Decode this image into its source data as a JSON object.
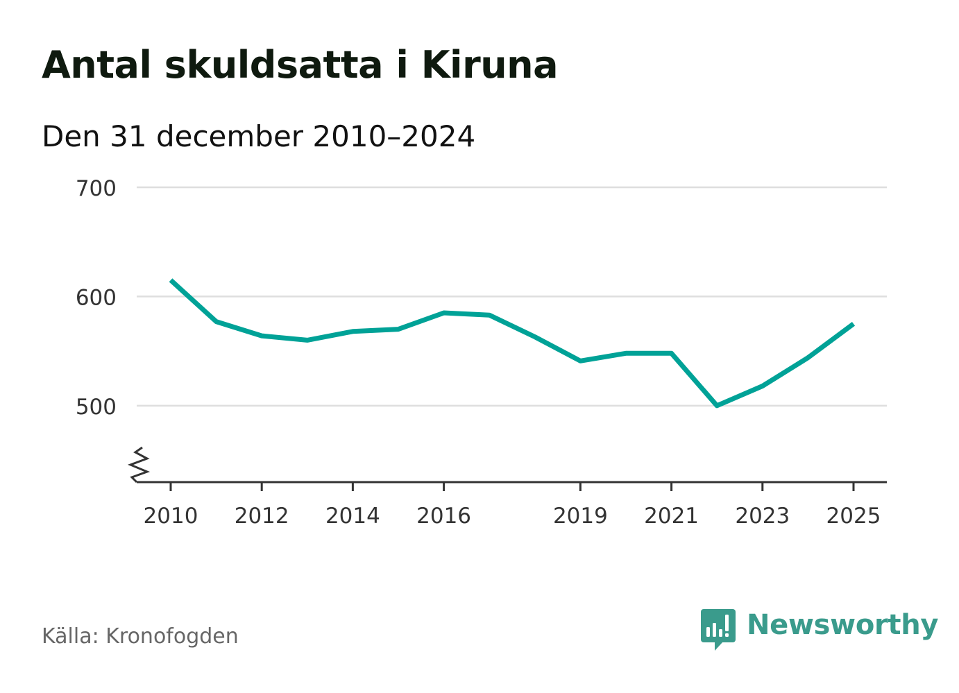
{
  "header": {
    "title": "Antal skuldsatta i Kiruna",
    "subtitle": "Den 31 december 2010–2024"
  },
  "footer": {
    "source": "Källa: Kronofogden",
    "brand": "Newsworthy",
    "brand_icon": "newsworthy-logo-icon"
  },
  "colors": {
    "line": "#00a297",
    "grid": "#dedede",
    "axis": "#333333",
    "tick_text": "#333333",
    "brand": "#3a9b8c"
  },
  "chart_data": {
    "type": "line",
    "title": "Antal skuldsatta i Kiruna",
    "subtitle": "Den 31 december 2010–2024",
    "xlabel": "",
    "ylabel": "",
    "x": [
      2010,
      2011,
      2012,
      2013,
      2014,
      2015,
      2016,
      2017,
      2018,
      2019,
      2020,
      2021,
      2022,
      2023,
      2024,
      2025
    ],
    "series": [
      {
        "values": [
          615,
          577,
          564,
          560,
          568,
          570,
          585,
          583,
          563,
          541,
          548,
          548,
          500,
          518,
          544,
          575
        ]
      }
    ],
    "xlim": [
      2010,
      2025
    ],
    "ylim": [
      430,
      700
    ],
    "x_ticks": [
      "2010",
      "2012",
      "2014",
      "2016",
      "2019",
      "2021",
      "2023",
      "2025"
    ],
    "y_ticks": [
      "500",
      "600",
      "700"
    ],
    "axis_break": true,
    "grid": true,
    "legend": "none"
  }
}
